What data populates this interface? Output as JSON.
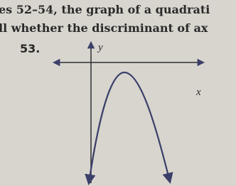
{
  "header": {
    "line1": "es 52–54, the graph of a quadrati",
    "line2": "ll whether the discriminant of ax"
  },
  "problem": {
    "number": "53.",
    "y_label": "y",
    "x_label": "x"
  }
}
